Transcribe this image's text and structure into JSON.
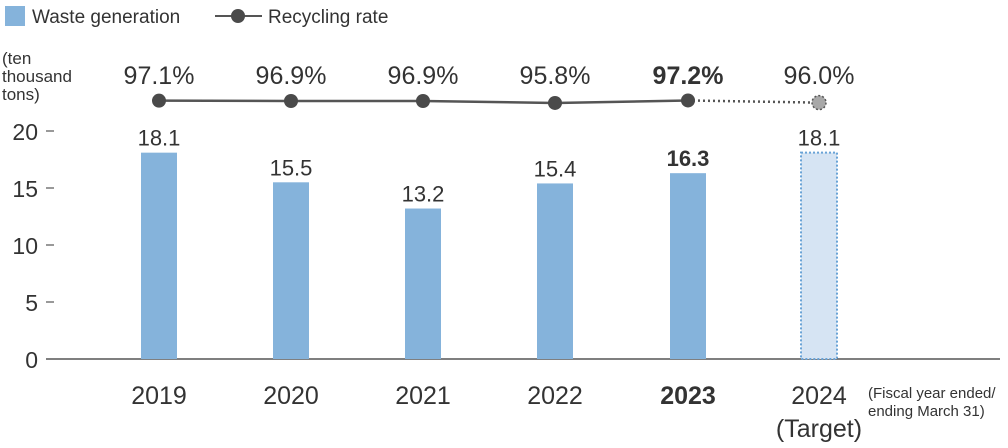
{
  "chart_data": {
    "type": "bar",
    "legend": {
      "placement": "top-left",
      "items": [
        {
          "label": "Waste generation",
          "kind": "bar"
        },
        {
          "label": "Recycling rate",
          "kind": "line"
        }
      ]
    },
    "ylabel_lines": [
      "(ten",
      "thousand",
      "tons)"
    ],
    "ylim": [
      0,
      20
    ],
    "yticks": [
      0,
      5,
      10,
      15,
      20
    ],
    "grid": false,
    "categories": [
      {
        "label": "2019",
        "sublabel": "",
        "highlight": false,
        "target": false
      },
      {
        "label": "2020",
        "sublabel": "",
        "highlight": false,
        "target": false
      },
      {
        "label": "2021",
        "sublabel": "",
        "highlight": false,
        "target": false
      },
      {
        "label": "2022",
        "sublabel": "",
        "highlight": false,
        "target": false
      },
      {
        "label": "2023",
        "sublabel": "",
        "highlight": true,
        "target": false
      },
      {
        "label": "2024",
        "sublabel": "(Target)",
        "highlight": false,
        "target": true
      }
    ],
    "series": [
      {
        "name": "Waste generation",
        "kind": "bar",
        "values": [
          18.1,
          15.5,
          13.2,
          15.4,
          16.3,
          18.1
        ],
        "value_labels": [
          "18.1",
          "15.5",
          "13.2",
          "15.4",
          "16.3",
          "18.1"
        ]
      },
      {
        "name": "Recycling rate",
        "kind": "line",
        "values": [
          97.1,
          96.9,
          96.9,
          95.8,
          97.2,
          96.0
        ],
        "value_labels": [
          "97.1%",
          "96.9%",
          "96.9%",
          "95.8%",
          "97.2%",
          "96.0%"
        ]
      }
    ],
    "footnote_lines": [
      "(Fiscal year ended/",
      "ending March 31)"
    ],
    "colors": {
      "bar": "#85b3db",
      "bar_target_fill": "#d6e4f3",
      "bar_target_border": "#6aa3d6",
      "line": "#555555",
      "marker": "#4a4a4a",
      "marker_target": "#a8a8a8",
      "axis": "#333333",
      "text": "#333333"
    }
  }
}
